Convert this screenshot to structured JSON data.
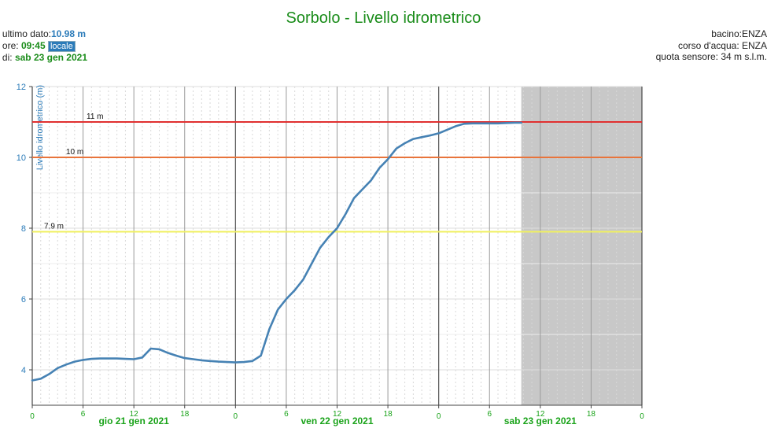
{
  "header": {
    "title": "Sorbolo - Livello idrometrico",
    "last_label": "ultimo dato:",
    "last_value": "10.98 m",
    "time_label": "ore: ",
    "time_value": "09:45",
    "time_badge": "locale",
    "date_label": "di: ",
    "date_value": "sab 23 gen 2021",
    "basin": "bacino:ENZA",
    "river": "corso d'acqua: ENZA",
    "sensor_quota": "quota sensore: 34 m s.l.m."
  },
  "colors": {
    "series": "#4682b4",
    "threshold_11": "#e03030",
    "threshold_10": "#e8743b",
    "threshold_7_9": "#f0f060",
    "future_shade": "#c8c8c8",
    "axis_text_green": "#1aa31a",
    "axis_text_blue": "#2b7bb9"
  },
  "chart_data": {
    "type": "line",
    "title": "Sorbolo - Livello idrometrico",
    "ylabel": "Livello idrometrico (m)",
    "xlabel": "",
    "ylim": [
      3,
      12
    ],
    "yticks": [
      4,
      6,
      8,
      10,
      12
    ],
    "xlim_hours": [
      0,
      72
    ],
    "xticks": [
      {
        "h": 0,
        "label": "0"
      },
      {
        "h": 6,
        "label": "6"
      },
      {
        "h": 12,
        "label": "12"
      },
      {
        "h": 18,
        "label": "18"
      },
      {
        "h": 24,
        "label": "0"
      },
      {
        "h": 30,
        "label": "6"
      },
      {
        "h": 36,
        "label": "12"
      },
      {
        "h": 42,
        "label": "18"
      },
      {
        "h": 48,
        "label": "0"
      },
      {
        "h": 54,
        "label": "6"
      },
      {
        "h": 60,
        "label": "12"
      },
      {
        "h": 66,
        "label": "18"
      },
      {
        "h": 72,
        "label": "0"
      }
    ],
    "day_labels": [
      {
        "h": 12,
        "label": "gio 21 gen 2021"
      },
      {
        "h": 36,
        "label": "ven 22 gen 2021"
      },
      {
        "h": 60,
        "label": "sab 23 gen 2021"
      }
    ],
    "thresholds": [
      {
        "value": 11,
        "label": "11 m",
        "color_key": "threshold_11"
      },
      {
        "value": 10,
        "label": "10 m",
        "color_key": "threshold_10"
      },
      {
        "value": 7.9,
        "label": "7.9 m",
        "color_key": "threshold_7_9"
      }
    ],
    "shaded_from_hour": 57.75,
    "series": [
      {
        "x": [
          0,
          1,
          2,
          3,
          4,
          5,
          6,
          7,
          8,
          9,
          10,
          11,
          12,
          13,
          14,
          15,
          16,
          17,
          18,
          19,
          20,
          21,
          22,
          23,
          24,
          25,
          26,
          27,
          28,
          29,
          30,
          31,
          32,
          33,
          34,
          35,
          36,
          37,
          38,
          39,
          40,
          41,
          42,
          43,
          44,
          45,
          46,
          47,
          48,
          49,
          50,
          51,
          52,
          53,
          54,
          55,
          56,
          57,
          57.75
        ],
        "y": [
          3.7,
          3.75,
          3.88,
          4.05,
          4.15,
          4.23,
          4.28,
          4.31,
          4.32,
          4.32,
          4.32,
          4.31,
          4.3,
          4.35,
          4.6,
          4.58,
          4.48,
          4.4,
          4.33,
          4.3,
          4.27,
          4.25,
          4.23,
          4.22,
          4.21,
          4.22,
          4.25,
          4.4,
          5.15,
          5.7,
          6.0,
          6.25,
          6.55,
          7.0,
          7.45,
          7.75,
          8.0,
          8.4,
          8.85,
          9.1,
          9.35,
          9.7,
          9.95,
          10.25,
          10.4,
          10.52,
          10.57,
          10.62,
          10.68,
          10.78,
          10.88,
          10.95,
          10.96,
          10.96,
          10.96,
          10.96,
          10.97,
          10.98,
          10.98
        ]
      }
    ]
  }
}
